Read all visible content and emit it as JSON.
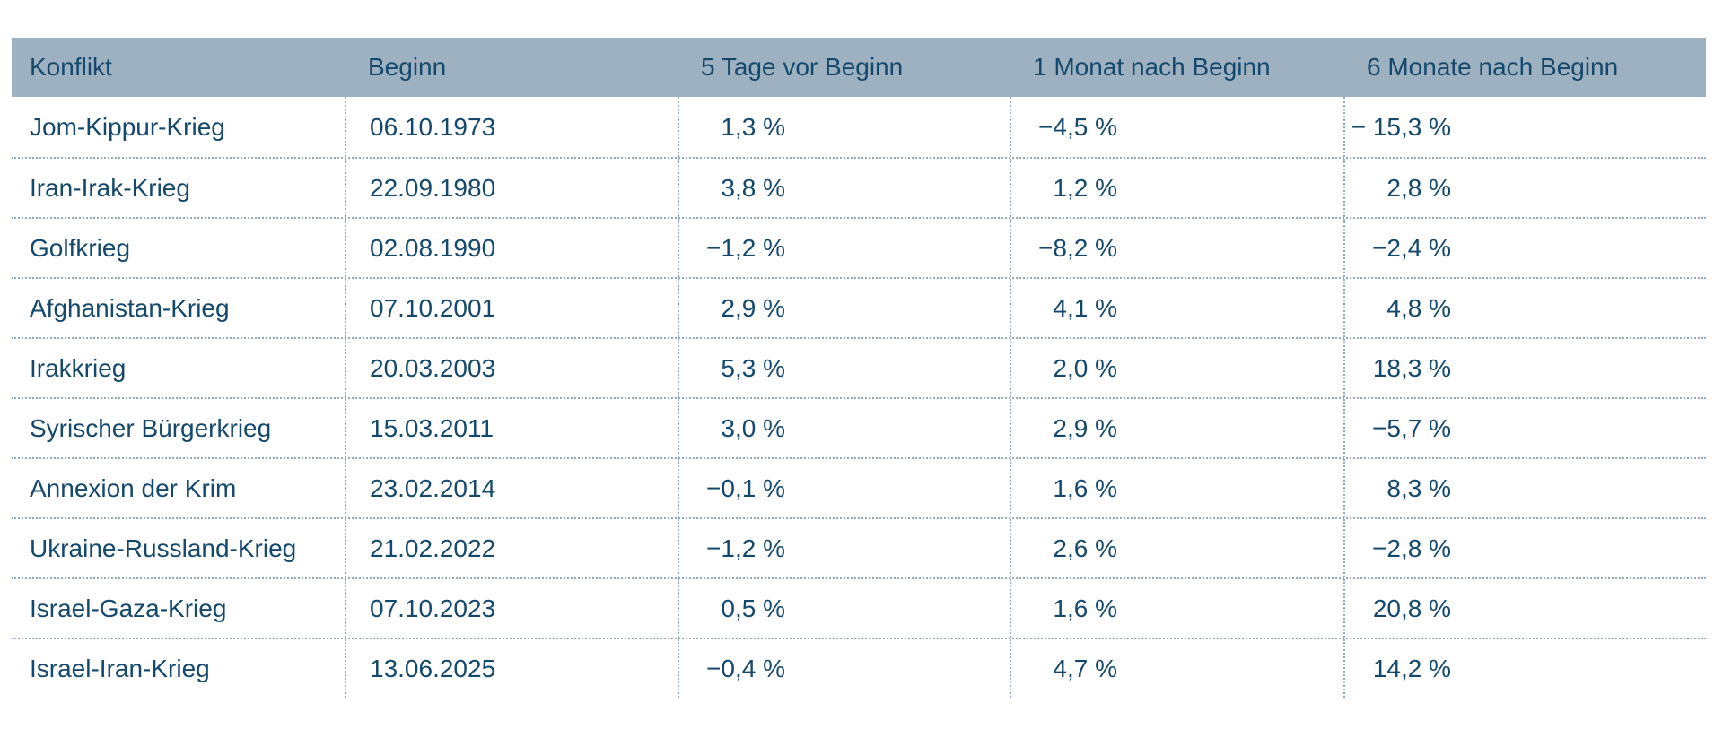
{
  "colors": {
    "text_navy": "#14486C",
    "header_background": "#9DB1C1",
    "dotted_line": "#92A9BE",
    "page_background": "#FFFFFF"
  },
  "table": {
    "headers": [
      "Konflikt",
      "Beginn",
      "5 Tage vor Beginn",
      "1 Monat nach Beginn",
      "6 Monate nach Beginn"
    ],
    "rows": [
      {
        "konflikt": "Jom-Kippur-Krieg",
        "beginn": "06.10.1973",
        "tage5": "1,3 %",
        "monat1": "−4,5 %",
        "monate6": "− 15,3 %"
      },
      {
        "konflikt": "Iran-Irak-Krieg",
        "beginn": "22.09.1980",
        "tage5": "3,8 %",
        "monat1": "1,2 %",
        "monate6": "2,8 %"
      },
      {
        "konflikt": "Golfkrieg",
        "beginn": "02.08.1990",
        "tage5": "−1,2 %",
        "monat1": "−8,2 %",
        "monate6": "−2,4 %"
      },
      {
        "konflikt": "Afghanistan-Krieg",
        "beginn": "07.10.2001",
        "tage5": "2,9 %",
        "monat1": "4,1 %",
        "monate6": "4,8 %"
      },
      {
        "konflikt": "Irakkrieg",
        "beginn": "20.03.2003",
        "tage5": "5,3 %",
        "monat1": "2,0 %",
        "monate6": "18,3 %"
      },
      {
        "konflikt": "Syrischer Bürgerkrieg",
        "beginn": "15.03.2011",
        "tage5": "3,0 %",
        "monat1": "2,9 %",
        "monate6": "−5,7 %"
      },
      {
        "konflikt": "Annexion der Krim",
        "beginn": "23.02.2014",
        "tage5": "−0,1 %",
        "monat1": "1,6 %",
        "monate6": "8,3 %"
      },
      {
        "konflikt": "Ukraine-Russland-Krieg",
        "beginn": "21.02.2022",
        "tage5": "−1,2 %",
        "monat1": "2,6 %",
        "monate6": "−2,8 %"
      },
      {
        "konflikt": "Israel-Gaza-Krieg",
        "beginn": "07.10.2023",
        "tage5": "0,5 %",
        "monat1": "1,6 %",
        "monate6": "20,8 %"
      },
      {
        "konflikt": "Israel-Iran-Krieg",
        "beginn": "13.06.2025",
        "tage5": "−0,4 %",
        "monat1": "4,7 %",
        "monate6": "14,2 %"
      }
    ]
  },
  "chart_data": {
    "type": "table",
    "columns": [
      "Konflikt",
      "Beginn",
      "5 Tage vor Beginn",
      "1 Monat nach Beginn",
      "6 Monate nach Beginn"
    ],
    "rows": [
      [
        "Jom-Kippur-Krieg",
        "06.10.1973",
        1.3,
        -4.5,
        -15.3
      ],
      [
        "Iran-Irak-Krieg",
        "22.09.1980",
        3.8,
        1.2,
        2.8
      ],
      [
        "Golfkrieg",
        "02.08.1990",
        -1.2,
        -8.2,
        -2.4
      ],
      [
        "Afghanistan-Krieg",
        "07.10.2001",
        2.9,
        4.1,
        4.8
      ],
      [
        "Irakkrieg",
        "20.03.2003",
        5.3,
        2.0,
        18.3
      ],
      [
        "Syrischer Bürgerkrieg",
        "15.03.2011",
        3.0,
        2.9,
        -5.7
      ],
      [
        "Annexion der Krim",
        "23.02.2014",
        -0.1,
        1.6,
        8.3
      ],
      [
        "Ukraine-Russland-Krieg",
        "21.02.2022",
        -1.2,
        2.6,
        -2.8
      ],
      [
        "Israel-Gaza-Krieg",
        "07.10.2023",
        0.5,
        1.6,
        20.8
      ],
      [
        "Israel-Iran-Krieg",
        "13.06.2025",
        -0.4,
        4.7,
        14.2
      ]
    ],
    "value_unit": "%",
    "notes": "Percentage values use German decimal commas and U+2212 minus signs as displayed"
  }
}
